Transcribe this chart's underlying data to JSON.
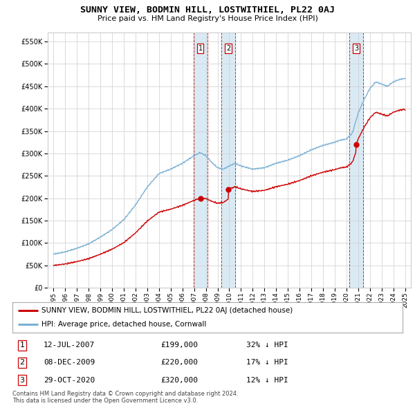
{
  "title": "SUNNY VIEW, BODMIN HILL, LOSTWITHIEL, PL22 0AJ",
  "subtitle": "Price paid vs. HM Land Registry's House Price Index (HPI)",
  "hpi_label": "HPI: Average price, detached house, Cornwall",
  "property_label": "SUNNY VIEW, BODMIN HILL, LOSTWITHIEL, PL22 0AJ (detached house)",
  "footer1": "Contains HM Land Registry data © Crown copyright and database right 2024.",
  "footer2": "This data is licensed under the Open Government Licence v3.0.",
  "transactions": [
    {
      "num": 1,
      "date": "12-JUL-2007",
      "price": 199000,
      "hpi_note": "32% ↓ HPI",
      "x": 2007.53
    },
    {
      "num": 2,
      "date": "08-DEC-2009",
      "price": 220000,
      "hpi_note": "17% ↓ HPI",
      "x": 2009.93
    },
    {
      "num": 3,
      "date": "29-OCT-2020",
      "price": 320000,
      "hpi_note": "12% ↓ HPI",
      "x": 2020.83
    }
  ],
  "property_color": "#cc0000",
  "hpi_color": "#7ab0d4",
  "background_color": "#ffffff",
  "grid_color": "#cccccc",
  "highlight_color": "#daeaf5",
  "ylim": [
    0,
    570000
  ],
  "yticks": [
    0,
    50000,
    100000,
    150000,
    200000,
    250000,
    300000,
    350000,
    400000,
    450000,
    500000,
    550000
  ],
  "xlim": [
    1994.5,
    2025.5
  ],
  "xticks": [
    1995,
    1996,
    1997,
    1998,
    1999,
    2000,
    2001,
    2002,
    2003,
    2004,
    2005,
    2006,
    2007,
    2008,
    2009,
    2010,
    2011,
    2012,
    2013,
    2014,
    2015,
    2016,
    2017,
    2018,
    2019,
    2020,
    2021,
    2022,
    2023,
    2024,
    2025
  ]
}
